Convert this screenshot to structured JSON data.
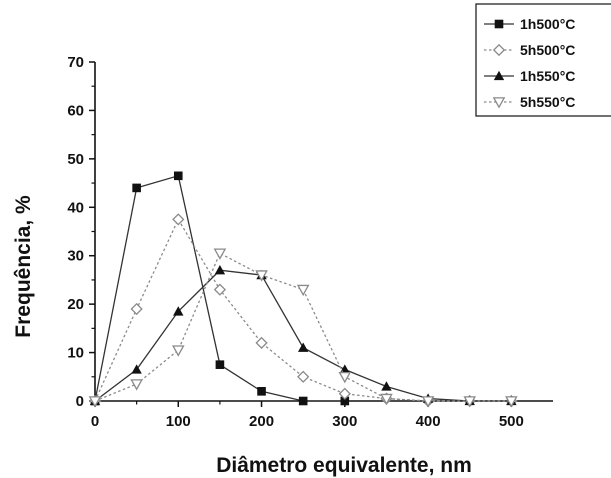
{
  "chart_data": {
    "type": "line",
    "title": "",
    "xlabel": "Diâmetro equivalente, nm",
    "ylabel": "Frequência, %",
    "xlim": [
      0,
      550
    ],
    "ylim": [
      0,
      70
    ],
    "x_ticks": [
      0,
      100,
      200,
      300,
      400,
      500
    ],
    "y_ticks": [
      0,
      10,
      20,
      30,
      40,
      50,
      60,
      70
    ],
    "x": [
      0,
      50,
      100,
      150,
      200,
      250,
      300,
      350,
      400,
      450,
      500
    ],
    "grid": false,
    "legend_position": "top-right",
    "series": [
      {
        "name": "1h500°C",
        "marker": "filled-square",
        "line": "solid",
        "color": "#333333",
        "values": [
          0,
          44,
          46.5,
          7.5,
          2,
          0,
          0,
          null,
          null,
          null,
          null
        ]
      },
      {
        "name": "5h500°C",
        "marker": "open-diamond",
        "line": "dotted",
        "color": "#8a8a8a",
        "values": [
          0,
          19,
          37.5,
          23,
          12,
          5,
          1.5,
          0.5,
          0,
          0,
          0
        ]
      },
      {
        "name": "1h550°C",
        "marker": "filled-triangle-up",
        "line": "solid",
        "color": "#333333",
        "values": [
          0,
          6.5,
          18.5,
          27,
          26,
          11,
          6.5,
          3,
          0.5,
          0,
          0
        ]
      },
      {
        "name": "5h550°C",
        "marker": "open-triangle-down",
        "line": "dotted",
        "color": "#8a8a8a",
        "values": [
          0,
          3.5,
          10.5,
          30.5,
          26,
          23,
          5,
          0.5,
          0,
          0,
          0
        ]
      }
    ]
  }
}
